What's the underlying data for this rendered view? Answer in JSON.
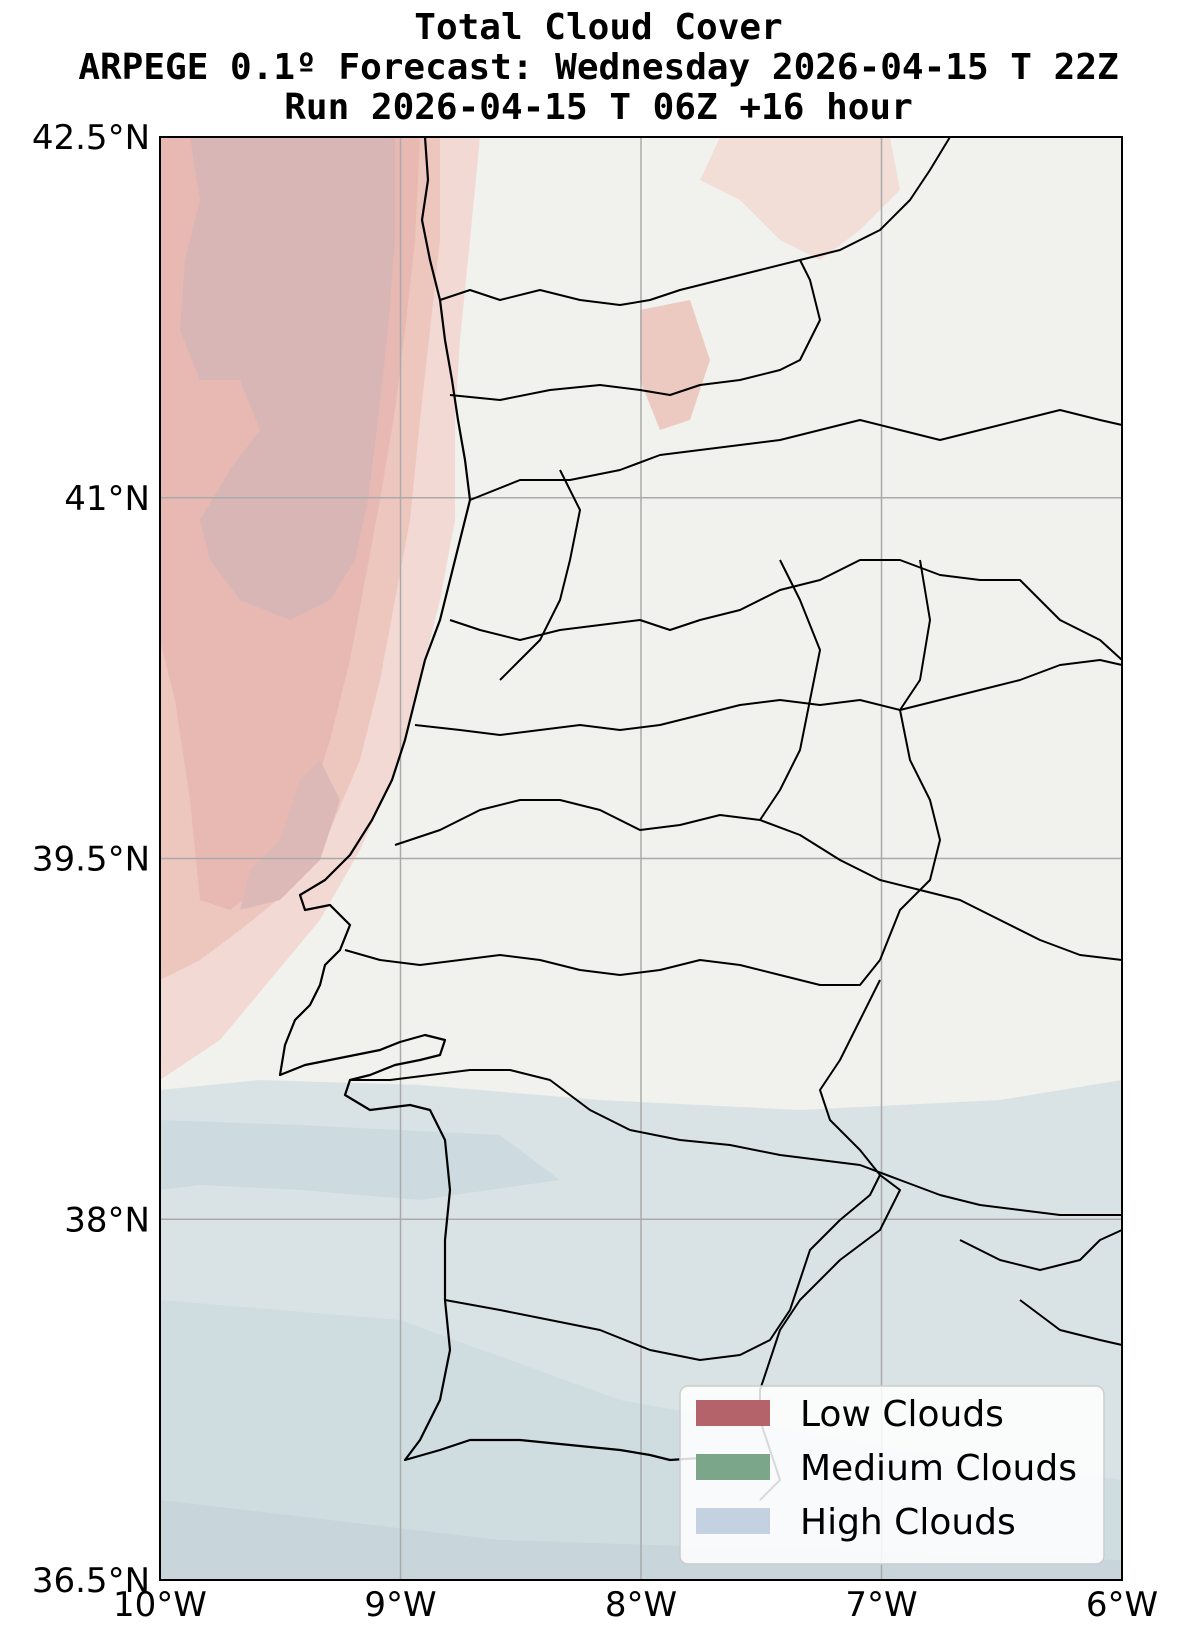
{
  "title": {
    "line1": "Total Cloud Cover",
    "line2": "ARPEGE 0.1º Forecast: Wednesday 2026-04-15 T 22Z",
    "line3": "Run 2026-04-15 T 06Z +16 hour"
  },
  "map": {
    "projection": "PlateCarree",
    "lon_range": [
      -10,
      -6
    ],
    "lat_range": [
      36.5,
      42.5
    ],
    "grid": true,
    "background_color": "#f1f2ee",
    "x_ticks": [
      {
        "value": -10,
        "label": "10°W"
      },
      {
        "value": -9,
        "label": "9°W"
      },
      {
        "value": -8,
        "label": "8°W"
      },
      {
        "value": -7,
        "label": "7°W"
      },
      {
        "value": -6,
        "label": "6°W"
      }
    ],
    "y_ticks": [
      {
        "value": 42.5,
        "label": "42.5°N"
      },
      {
        "value": 41,
        "label": "41°N"
      },
      {
        "value": 39.5,
        "label": "39.5°N"
      },
      {
        "value": 38,
        "label": "38°N"
      },
      {
        "value": 36.5,
        "label": "36.5°N"
      }
    ]
  },
  "legend": {
    "placement": "lower-right",
    "entries": [
      {
        "label": "Low Clouds",
        "color": "#b5636b"
      },
      {
        "label": "Medium Clouds",
        "color": "#7ba68a"
      },
      {
        "label": "High Clouds",
        "color": "#c3d1e0"
      }
    ]
  },
  "cloud_layers": {
    "low_cloud_color": "#e9b9b3",
    "low_cloud_dense_color": "#d6b6b6",
    "high_cloud_color": "#d3e0e3",
    "high_cloud_dense_color": "#c9d7dc"
  }
}
